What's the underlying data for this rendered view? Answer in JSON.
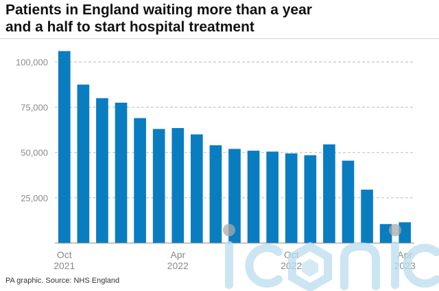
{
  "title_line1": "Patients in England waiting more than a year",
  "title_line2": "and a half to start hospital treatment",
  "source": "PA graphic. Source: NHS England",
  "watermark": "iconic",
  "colors": {
    "bar": "#0a7dc1",
    "grid": "#bcbcbc",
    "axis": "#888888",
    "tick_text": "#8a8a8a"
  },
  "chart_data": {
    "type": "bar",
    "title": "Patients in England waiting more than a year and a half to start hospital treatment",
    "categories": [
      "Oct 2021",
      "Nov 2021",
      "Dec 2021",
      "Jan 2022",
      "Feb 2022",
      "Mar 2022",
      "Apr 2022",
      "May 2022",
      "Jun 2022",
      "Jul 2022",
      "Aug 2022",
      "Sep 2022",
      "Oct 2022",
      "Nov 2022",
      "Dec 2022",
      "Jan 2023",
      "Feb 2023",
      "Mar 2023",
      "Apr 2023"
    ],
    "values": [
      106000,
      87500,
      80000,
      77500,
      69000,
      63000,
      63500,
      60000,
      54000,
      52000,
      51000,
      50500,
      49500,
      48500,
      54500,
      45500,
      29500,
      10500,
      11500
    ],
    "x_tick_labels": [
      {
        "index": 0,
        "line1": "Oct",
        "line2": "2021"
      },
      {
        "index": 6,
        "line1": "Apr",
        "line2": "2022"
      },
      {
        "index": 12,
        "line1": "Oct",
        "line2": "2022"
      },
      {
        "index": 18,
        "line1": "Apr",
        "line2": "2023"
      }
    ],
    "y_ticks": [
      25000,
      50000,
      75000,
      100000
    ],
    "y_tick_labels": [
      "25,000",
      "50,000",
      "75,000",
      "100,000"
    ],
    "ylim": [
      0,
      110000
    ],
    "grid": true,
    "xlabel": "",
    "ylabel": ""
  }
}
